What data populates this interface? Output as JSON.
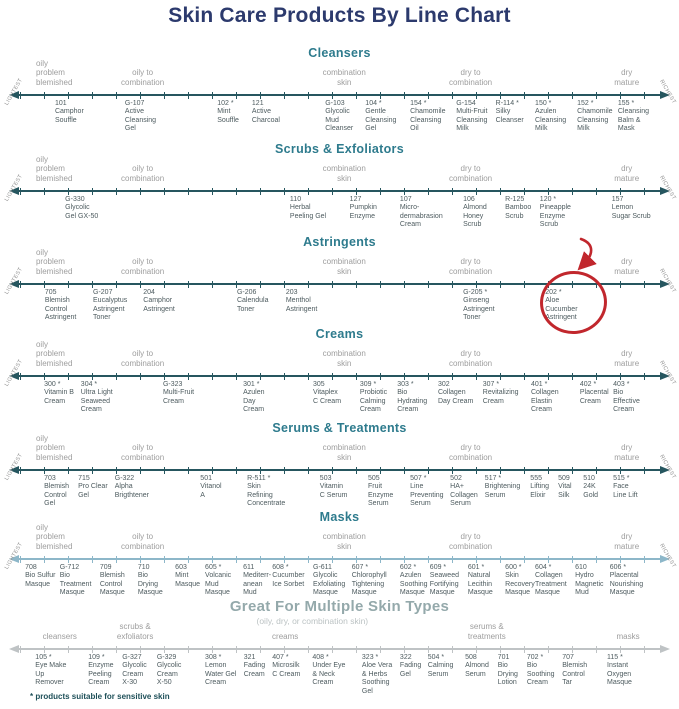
{
  "title": "Skin Care Products By Line Chart",
  "footnote": "* products suitable for sensitive skin",
  "edge_labels": {
    "left": "LIGHTEST",
    "right": "RICHEST"
  },
  "colors": {
    "title": "#2c3a6d",
    "heading": "#2e7b8d",
    "bheading": "#94a9ab",
    "subtitle": "#bcc3c4",
    "skin": "#9d9d9d",
    "prod": "#4d5b5f",
    "edge": "#909090",
    "foot": "#1d4f58",
    "hl": "#c1272d"
  },
  "highlight": {
    "section": "Astringents",
    "product_code": "202 *",
    "shape": "red circle with arrow",
    "color": "#c1272d"
  },
  "sections": [
    {
      "id": "cleansers",
      "heading": "Cleansers",
      "line_color": "#26565f",
      "edge_labels": true,
      "labels": [
        {
          "text": "oily\nproblem\nblemished",
          "x": 5.3,
          "align": "left"
        },
        {
          "text": "oily to\ncombination",
          "x": 21,
          "align": "center"
        },
        {
          "text": "combination\nskin",
          "x": 50.7,
          "align": "center"
        },
        {
          "text": "dry to\ncombination",
          "x": 69.3,
          "align": "center"
        },
        {
          "text": "dry\nmature",
          "x": 92.3,
          "align": "center"
        }
      ],
      "products": [
        {
          "code": "101",
          "name": "Camphor\nSouffle",
          "x": 8.1
        },
        {
          "code": "G-107",
          "name": "Active\nCleansing\nGel",
          "x": 18.4
        },
        {
          "code": "102 *",
          "name": "Mint\nSouffle",
          "x": 32.0
        },
        {
          "code": "121",
          "name": "Active\nCharcoal",
          "x": 37.1
        },
        {
          "code": "G-103",
          "name": "Glycolic\nMud\nCleanser",
          "x": 47.9
        },
        {
          "code": "104 *",
          "name": "Gentle\nCleansing\nGel",
          "x": 53.8
        },
        {
          "code": "154 *",
          "name": "Chamomile\nCleansing\nOil",
          "x": 60.4
        },
        {
          "code": "G-154",
          "name": "Multi-Fruit\nCleansing\nMilk",
          "x": 67.2
        },
        {
          "code": "R-114 *",
          "name": "Silky\nCleanser",
          "x": 73.0
        },
        {
          "code": "150 *",
          "name": "Azulen\nCleansing\nMilk",
          "x": 78.8
        },
        {
          "code": "152 *",
          "name": "Chamomile\nCleansing\nMilk",
          "x": 85.0
        },
        {
          "code": "155 *",
          "name": "Cleansing\nBalm &\nMask",
          "x": 91.0
        }
      ]
    },
    {
      "id": "scrubs-exfoliators",
      "heading": "Scrubs & Exfoliators",
      "line_color": "#26565f",
      "edge_labels": true,
      "labels": [
        {
          "text": "oily\nproblem\nblemished",
          "x": 5.3,
          "align": "left"
        },
        {
          "text": "oily to\ncombination",
          "x": 21,
          "align": "center"
        },
        {
          "text": "combination\nskin",
          "x": 50.7,
          "align": "center"
        },
        {
          "text": "dry to\ncombination",
          "x": 69.3,
          "align": "center"
        },
        {
          "text": "dry\nmature",
          "x": 92.3,
          "align": "center"
        }
      ],
      "products": [
        {
          "code": "G-330",
          "name": "Glycolic\nGel GX-50",
          "x": 9.6
        },
        {
          "code": "110",
          "name": "Herbal\nPeeling Gel",
          "x": 42.7
        },
        {
          "code": "127",
          "name": "Pumpkin\nEnzyme",
          "x": 51.5
        },
        {
          "code": "107",
          "name": "Micro-\ndermabrasion\nCream",
          "x": 58.9
        },
        {
          "code": "106",
          "name": "Almond\nHoney\nScrub",
          "x": 68.2
        },
        {
          "code": "R-125",
          "name": "Bamboo\nScrub",
          "x": 74.4
        },
        {
          "code": "120 *",
          "name": "Pineapple\nEnzyme\nScrub",
          "x": 79.5
        },
        {
          "code": "157",
          "name": "Lemon\nSugar Scrub",
          "x": 90.1
        }
      ]
    },
    {
      "id": "astringents",
      "heading": "Astringents",
      "line_color": "#26565f",
      "edge_labels": true,
      "labels": [
        {
          "text": "oily\nproblem\nblemished",
          "x": 5.3,
          "align": "left"
        },
        {
          "text": "oily to\ncombination",
          "x": 21,
          "align": "center"
        },
        {
          "text": "combination\nskin",
          "x": 50.7,
          "align": "center"
        },
        {
          "text": "dry to\ncombination",
          "x": 69.3,
          "align": "center"
        },
        {
          "text": "dry\nmature",
          "x": 92.3,
          "align": "center"
        }
      ],
      "products": [
        {
          "code": "705",
          "name": "Blemish\nControl\nAstringent",
          "x": 6.6
        },
        {
          "code": "G-207",
          "name": "Eucalyptus\nAstringent\nToner",
          "x": 13.7
        },
        {
          "code": "204",
          "name": "Camphor\nAstringent",
          "x": 21.1
        },
        {
          "code": "G-206",
          "name": "Calendula\nToner",
          "x": 34.9
        },
        {
          "code": "203",
          "name": "Menthol\nAstringent",
          "x": 42.1
        },
        {
          "code": "G-205 *",
          "name": "Ginseng\nAstringent\nToner",
          "x": 68.2
        },
        {
          "code": "202 *",
          "name": "Aloe\nCucumber\nAstringent",
          "x": 80.3
        }
      ]
    },
    {
      "id": "creams",
      "heading": "Creams",
      "line_color": "#26565f",
      "edge_labels": true,
      "labels": [
        {
          "text": "oily\nproblem\nblemished",
          "x": 5.3,
          "align": "left"
        },
        {
          "text": "oily to\ncombination",
          "x": 21,
          "align": "center"
        },
        {
          "text": "combination\nskin",
          "x": 50.7,
          "align": "center"
        },
        {
          "text": "dry to\ncombination",
          "x": 69.3,
          "align": "center"
        },
        {
          "text": "dry\nmature",
          "x": 92.3,
          "align": "center"
        }
      ],
      "products": [
        {
          "code": "300 *",
          "name": "Vitamin B\nCream",
          "x": 6.5
        },
        {
          "code": "304 *",
          "name": "Ultra Light\nSeaweed\nCream",
          "x": 11.9
        },
        {
          "code": "G-323",
          "name": "Multi-Fruit\nCream",
          "x": 24.0
        },
        {
          "code": "301 *",
          "name": "Azulen\nDay\nCream",
          "x": 35.8
        },
        {
          "code": "305",
          "name": "Vitaplex\nC Cream",
          "x": 46.1
        },
        {
          "code": "309 *",
          "name": "Probiotic\nCalming\nCream",
          "x": 53.0
        },
        {
          "code": "303 *",
          "name": "Bio\nHydrating\nCream",
          "x": 58.5
        },
        {
          "code": "302",
          "name": "Collagen\nDay Cream",
          "x": 64.5
        },
        {
          "code": "307 *",
          "name": "Revitalizing\nCream",
          "x": 71.1
        },
        {
          "code": "401 *",
          "name": "Collagen\nElastin\nCream",
          "x": 78.2
        },
        {
          "code": "402 *",
          "name": "Placental\nCream",
          "x": 85.4
        },
        {
          "code": "403 *",
          "name": "Bio\nEffective\nCream",
          "x": 90.3
        }
      ]
    },
    {
      "id": "serums-treatments",
      "heading": "Serums & Treatments",
      "line_color": "#26565f",
      "edge_labels": true,
      "labels": [
        {
          "text": "oily\nproblem\nblemished",
          "x": 5.3,
          "align": "left"
        },
        {
          "text": "oily to\ncombination",
          "x": 21,
          "align": "center"
        },
        {
          "text": "combination\nskin",
          "x": 50.7,
          "align": "center"
        },
        {
          "text": "dry to\ncombination",
          "x": 69.3,
          "align": "center"
        },
        {
          "text": "dry\nmature",
          "x": 92.3,
          "align": "center"
        }
      ],
      "products": [
        {
          "code": "703",
          "name": "Blemish\nControl\nGel",
          "x": 6.5
        },
        {
          "code": "715",
          "name": "Pro Clear\nGel",
          "x": 11.5
        },
        {
          "code": "G-322",
          "name": "Alpha\nBrigthtener",
          "x": 16.9
        },
        {
          "code": "501",
          "name": "Vitanol\nA",
          "x": 29.5
        },
        {
          "code": "R-511 *",
          "name": "Skin\nRefining\nConcentrate",
          "x": 36.4
        },
        {
          "code": "503",
          "name": "Vitamin\nC Serum",
          "x": 47.1
        },
        {
          "code": "505",
          "name": "Fruit\nEnzyme\nSerum",
          "x": 54.2
        },
        {
          "code": "507 *",
          "name": "Line\nPreventing\nSerum",
          "x": 60.4
        },
        {
          "code": "502",
          "name": "HA+\nCollagen\nSerum",
          "x": 66.3
        },
        {
          "code": "517 *",
          "name": "Brightening\nSerum",
          "x": 71.4
        },
        {
          "code": "555",
          "name": "Lifting\nElixir",
          "x": 78.1
        },
        {
          "code": "509",
          "name": "Vital\nSilk",
          "x": 82.2
        },
        {
          "code": "510",
          "name": "24K\nGold",
          "x": 85.9
        },
        {
          "code": "515 *",
          "name": "Face\nLine Lift",
          "x": 90.3
        }
      ]
    },
    {
      "id": "masks",
      "heading": "Masks",
      "line_color": "#8db7c9",
      "edge_labels": true,
      "labels": [
        {
          "text": "oily\nproblem\nblemished",
          "x": 5.3,
          "align": "left"
        },
        {
          "text": "oily to\ncombination",
          "x": 21,
          "align": "center"
        },
        {
          "text": "combination\nskin",
          "x": 50.7,
          "align": "center"
        },
        {
          "text": "dry to\ncombination",
          "x": 69.3,
          "align": "center"
        },
        {
          "text": "dry\nmature",
          "x": 92.3,
          "align": "center"
        }
      ],
      "products": [
        {
          "code": "708",
          "name": "Bio Sulfur\nMasque",
          "x": 3.7
        },
        {
          "code": "G-712",
          "name": "Bio\nTreatment\nMasque",
          "x": 8.8
        },
        {
          "code": "709",
          "name": "Blemish\nControl\nMasque",
          "x": 14.7
        },
        {
          "code": "710",
          "name": "Bio\nDrying\nMasque",
          "x": 20.3
        },
        {
          "code": "603",
          "name": "Mint\nMasque",
          "x": 25.8
        },
        {
          "code": "605 *",
          "name": "Volcanic\nMud\nMasque",
          "x": 30.2
        },
        {
          "code": "611",
          "name": "Mediterr-\nanean\nMud",
          "x": 35.8
        },
        {
          "code": "608 *",
          "name": "Cucumber\nIce Sorbet",
          "x": 40.1
        },
        {
          "code": "G-611",
          "name": "Glycolic\nExfoliating\nMasque",
          "x": 46.1
        },
        {
          "code": "607 *",
          "name": "Chlorophyll\nTightening\nMasque",
          "x": 51.8
        },
        {
          "code": "602 *",
          "name": "Azulen\nSoothing\nMasque",
          "x": 58.9
        },
        {
          "code": "609 *",
          "name": "Seaweed\nFortifying\nMasque",
          "x": 63.3
        },
        {
          "code": "601 *",
          "name": "Natural\nLecithin\nMasque",
          "x": 68.9
        },
        {
          "code": "600 *",
          "name": "Skin\nRecovery\nMasque",
          "x": 74.4
        },
        {
          "code": "604 *",
          "name": "Collagen\nTreatment\nMasque",
          "x": 78.8
        },
        {
          "code": "610",
          "name": "Hydro\nMagnetic\nMud",
          "x": 84.7
        },
        {
          "code": "606 *",
          "name": "Placental\nNourishing\nMasque",
          "x": 89.8
        }
      ]
    },
    {
      "id": "multiple-skin-types",
      "heading": "Great For Multiple Skin Types",
      "subtitle": "(oily, dry, or combination skin)",
      "big": true,
      "line_color": "#bfc3c5",
      "edge_labels": false,
      "labels": [
        {
          "text": "cleansers",
          "x": 8.8,
          "align": "center"
        },
        {
          "text": "scrubs &\nexfoliators",
          "x": 19.9,
          "align": "center"
        },
        {
          "text": "creams",
          "x": 42,
          "align": "center"
        },
        {
          "text": "serums &\ntreatments",
          "x": 71.7,
          "align": "center"
        },
        {
          "text": "masks",
          "x": 92.5,
          "align": "center"
        }
      ],
      "products": [
        {
          "code": "105 *",
          "name": "Eye Make\nUp\nRemover",
          "x": 5.2
        },
        {
          "code": "109 *",
          "name": "Enzyme\nPeeling\nCream",
          "x": 13.0
        },
        {
          "code": "G-327",
          "name": "Glycolic\nCream\nX-30",
          "x": 18.0
        },
        {
          "code": "G-329",
          "name": "Glycolic\nCream\nX-50",
          "x": 23.1
        },
        {
          "code": "308 *",
          "name": "Lemon\nWater Gel\nCream",
          "x": 30.2
        },
        {
          "code": "321",
          "name": "Fading\nCream",
          "x": 35.9
        },
        {
          "code": "407 *",
          "name": "Microsilk\nC Cream",
          "x": 40.1
        },
        {
          "code": "408 *",
          "name": "Under Eye\n& Neck\nCream",
          "x": 46.0
        },
        {
          "code": "323 *",
          "name": "Aloe Vera\n& Herbs\nSoothing\nGel",
          "x": 53.3
        },
        {
          "code": "322",
          "name": "Fading\nGel",
          "x": 58.9
        },
        {
          "code": "504 *",
          "name": "Calming\nSerum",
          "x": 63.0
        },
        {
          "code": "508",
          "name": "Almond\nSerum",
          "x": 68.5
        },
        {
          "code": "701",
          "name": "Bio\nDrying\nLotion",
          "x": 73.3
        },
        {
          "code": "702 *",
          "name": "Bio\nSoothing\nCream",
          "x": 77.6
        },
        {
          "code": "707",
          "name": "Blemish\nControl\nTar",
          "x": 82.8
        },
        {
          "code": "115 *",
          "name": "Instant\nOxygen\nMasque",
          "x": 89.4
        }
      ]
    }
  ]
}
